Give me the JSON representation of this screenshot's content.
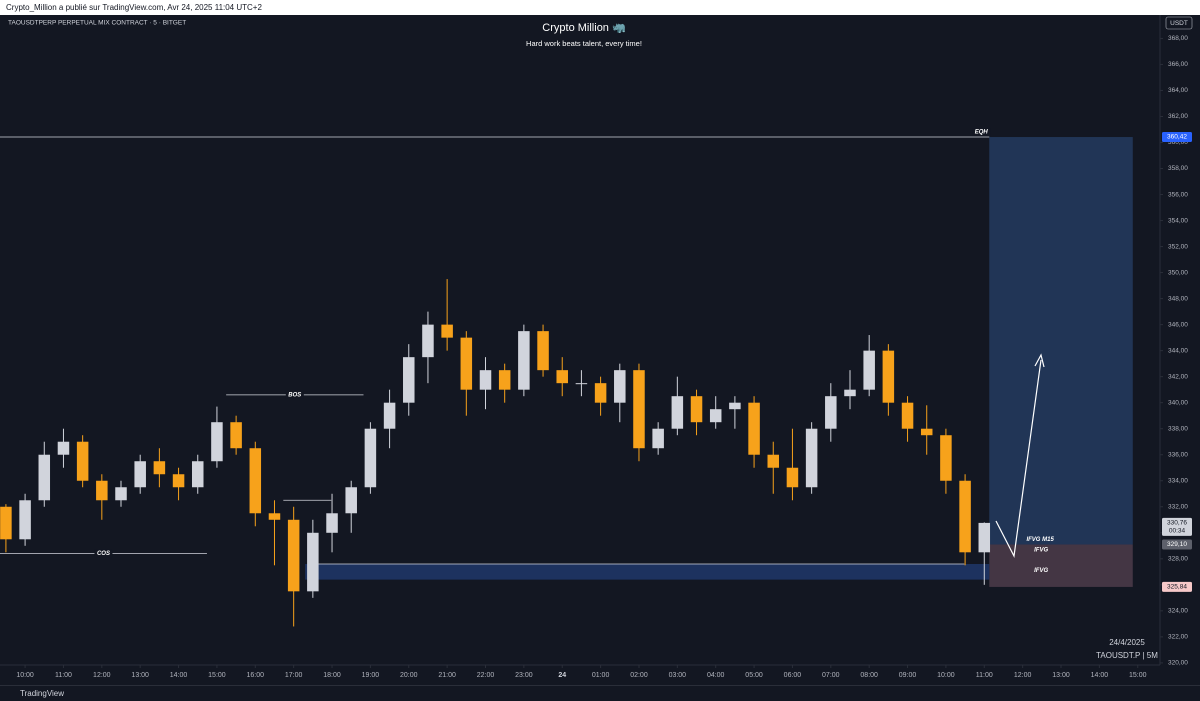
{
  "header": "Crypto_Million a publié sur TradingView.com, Avr 24, 2025 11:04 UTC+2",
  "footer": "TradingView",
  "chart_data": {
    "type": "candlestick",
    "symbol": "TAOUSDTPERP PERPETUAL MIX CONTRACT · 5 · BITGET",
    "title": "Crypto Million 🦏",
    "subtitle": "Hard work beats talent, every time!",
    "currency": "USDT",
    "date_label": "24/4/2025",
    "symbol_label": "TAOUSDT.P | 5M",
    "up_color": "#d1d4dc",
    "down_color": "#f7a21b",
    "xlim": [
      -0.654,
      29.58
    ],
    "ylim": [
      318.3,
      369.8
    ],
    "xticks": [
      {
        "value": 0,
        "label": "10:00"
      },
      {
        "value": 1,
        "label": "11:00"
      },
      {
        "value": 2,
        "label": "12:00"
      },
      {
        "value": 3,
        "label": "13:00"
      },
      {
        "value": 4,
        "label": "14:00"
      },
      {
        "value": 5,
        "label": "15:00"
      },
      {
        "value": 6,
        "label": "16:00"
      },
      {
        "value": 7,
        "label": "17:00"
      },
      {
        "value": 8,
        "label": "18:00"
      },
      {
        "value": 9,
        "label": "19:00"
      },
      {
        "value": 10,
        "label": "20:00"
      },
      {
        "value": 11,
        "label": "21:00"
      },
      {
        "value": 12,
        "label": "22:00"
      },
      {
        "value": 13,
        "label": "23:00"
      },
      {
        "value": 14,
        "label": "24"
      },
      {
        "value": 15,
        "label": "01:00"
      },
      {
        "value": 16,
        "label": "02:00"
      },
      {
        "value": 17,
        "label": "03:00"
      },
      {
        "value": 18,
        "label": "04:00"
      },
      {
        "value": 19,
        "label": "05:00"
      },
      {
        "value": 20,
        "label": "06:00"
      },
      {
        "value": 21,
        "label": "07:00"
      },
      {
        "value": 22,
        "label": "08:00"
      },
      {
        "value": 23,
        "label": "09:00"
      },
      {
        "value": 24,
        "label": "10:00"
      },
      {
        "value": 25,
        "label": "11:00"
      },
      {
        "value": 26,
        "label": "12:00"
      },
      {
        "value": 27,
        "label": "13:00"
      },
      {
        "value": 28,
        "label": "14:00"
      },
      {
        "value": 29,
        "label": "15:00"
      }
    ],
    "yticks": [
      {
        "value": 320,
        "label": "320,00"
      },
      {
        "value": 322,
        "label": "322,00"
      },
      {
        "value": 324,
        "label": "324,00"
      },
      {
        "value": 326,
        "label": "326,00"
      },
      {
        "value": 328,
        "label": "328,00"
      },
      {
        "value": 330,
        "label": "330,00"
      },
      {
        "value": 332,
        "label": "332,00"
      },
      {
        "value": 334,
        "label": "334,00"
      },
      {
        "value": 336,
        "label": "336,00"
      },
      {
        "value": 338,
        "label": "338,00"
      },
      {
        "value": 340,
        "label": "340,00"
      },
      {
        "value": 342,
        "label": "342,00"
      },
      {
        "value": 344,
        "label": "344,00"
      },
      {
        "value": 346,
        "label": "346,00"
      },
      {
        "value": 348,
        "label": "348,00"
      },
      {
        "value": 350,
        "label": "350,00"
      },
      {
        "value": 352,
        "label": "352,00"
      },
      {
        "value": 354,
        "label": "354,00"
      },
      {
        "value": 356,
        "label": "356,00"
      },
      {
        "value": 358,
        "label": "358,00"
      },
      {
        "value": 360,
        "label": "360,00"
      },
      {
        "value": 362,
        "label": "362,00"
      },
      {
        "value": 364,
        "label": "364,00"
      },
      {
        "value": 366,
        "label": "366,00"
      },
      {
        "value": 368,
        "label": "368,00"
      }
    ],
    "x": [
      -0.5,
      0,
      0.5,
      1,
      1.5,
      2,
      2.5,
      3,
      3.5,
      4,
      4.5,
      5,
      5.5,
      6,
      6.5,
      7,
      7.5,
      8,
      8.5,
      9,
      9.5,
      10,
      10.5,
      11,
      11.5,
      12,
      12.5,
      13,
      13.5,
      14,
      14.5,
      15,
      15.5,
      16,
      16.5,
      17,
      17.5,
      18,
      18.5,
      19,
      19.5,
      20,
      20.5,
      21,
      21.5,
      22,
      22.5,
      23,
      23.5,
      24,
      24.5,
      25
    ],
    "open": [
      332,
      329.5,
      332.5,
      336,
      337,
      334,
      332.5,
      333.5,
      335.5,
      334.5,
      333.5,
      335.5,
      338.5,
      336.5,
      331.5,
      331,
      325.5,
      330,
      331.5,
      333.5,
      338,
      340,
      343.5,
      346,
      345,
      341,
      342.5,
      341,
      345.5,
      342.5,
      341.5,
      341.5,
      340,
      342.5,
      336.5,
      338,
      340.5,
      338.5,
      339.5,
      340,
      336,
      335,
      333.5,
      338,
      340.5,
      341,
      344,
      340,
      338,
      337.5,
      334,
      328.5
    ],
    "high": [
      332.2,
      333,
      337,
      338,
      337.5,
      334.5,
      334,
      336,
      336.5,
      335,
      336,
      339.7,
      339,
      337,
      332.5,
      332,
      331,
      333,
      334,
      338.5,
      341,
      344.5,
      347,
      349.5,
      345.5,
      343.5,
      343,
      346,
      346,
      343.5,
      342.5,
      342,
      343,
      343,
      338.5,
      342,
      341,
      340.5,
      340.5,
      340.5,
      337,
      338,
      338.5,
      341.5,
      342.5,
      345.2,
      344.5,
      340.5,
      339.8,
      338,
      334.5,
      330.8
    ],
    "low": [
      328.5,
      329,
      332,
      335,
      333.5,
      331,
      332,
      333,
      333.5,
      332.5,
      333,
      335,
      336,
      330.5,
      327.5,
      322.8,
      325,
      328.5,
      330,
      333,
      336.5,
      339,
      341.5,
      344,
      339,
      339.5,
      340,
      340.5,
      342,
      340.5,
      340.5,
      339,
      338.5,
      335.5,
      336,
      337.5,
      337.5,
      338,
      338,
      335,
      333,
      332.5,
      333,
      337,
      339.5,
      340.5,
      339,
      337,
      336,
      333,
      327.5,
      326
    ],
    "close": [
      329.5,
      332.5,
      336,
      337,
      334,
      332.5,
      333.5,
      335.5,
      334.5,
      333.5,
      335.5,
      338.5,
      336.5,
      331.5,
      331,
      325.5,
      330,
      331.5,
      333.5,
      338,
      340,
      343.5,
      346,
      345,
      341,
      342.5,
      341,
      345.5,
      342.5,
      341.5,
      341.5,
      340,
      342.5,
      336.5,
      338,
      340.5,
      338.5,
      339.5,
      340,
      336,
      335,
      333.5,
      338,
      340.5,
      341,
      344,
      340,
      338,
      337.5,
      334,
      328.5,
      330.76
    ],
    "levels": [
      {
        "label": "EQH",
        "value": 360.42,
        "x": [
          -0.654,
          25.13
        ]
      },
      {
        "label": "BOS",
        "value": 340.6,
        "x": [
          5.24,
          8.82
        ]
      },
      {
        "label": "COS",
        "value": 328.4,
        "x": [
          -0.654,
          4.74
        ]
      },
      {
        "value": 332.5,
        "x": [
          6.73,
          7.98
        ]
      },
      {
        "value": 327.6,
        "x": [
          7.51,
          24.48
        ]
      }
    ],
    "zones": [
      {
        "range": [
          329.1,
          360.42
        ],
        "x": [
          25.13,
          28.87
        ],
        "color": "#24395c"
      },
      {
        "range": [
          325.84,
          329.1
        ],
        "x": [
          25.13,
          28.87
        ],
        "color": "#4a3a48"
      },
      {
        "range": [
          326.4,
          327.6
        ],
        "x": [
          7.3,
          25.13
        ],
        "color": "#1f3566"
      }
    ],
    "labels": [
      {
        "text": "IFVG M15",
        "value": 329.5,
        "x": 26.1
      },
      {
        "text": "IFVG",
        "value": 328.7,
        "x": 26.3
      },
      {
        "text": "IFVG",
        "value": 327.1,
        "x": 26.3
      }
    ],
    "price_tags": [
      {
        "label": "360,42",
        "value": 360.42,
        "color": "#2962ff"
      },
      {
        "label": "330,76",
        "value": 330.76,
        "sub": "00:34",
        "color": "#d1d4dc"
      },
      {
        "label": "329,10",
        "value": 329.1,
        "color": "#5d606b"
      },
      {
        "label": "325,84",
        "value": 325.84,
        "color": "#f7c9c9"
      }
    ]
  }
}
